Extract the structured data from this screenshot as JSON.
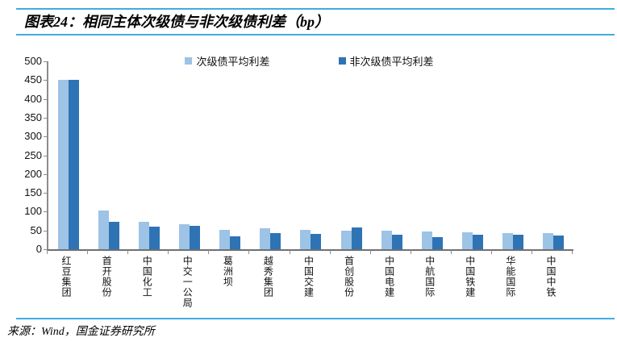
{
  "title": "图表24：相同主体次级债与非次级债利差（bp）",
  "source": "来源：Wind，国金证券研究所",
  "colors": {
    "rule_blue": "#41ACE1",
    "axis_gray": "#8C8C8C",
    "series1_light_blue": "#9DC3E6",
    "series2_dark_blue": "#2E74B5"
  },
  "chart_data": {
    "type": "bar",
    "title": "相同主体次级债与非次级债利差（bp）",
    "categories": [
      "红豆集团",
      "首开股份",
      "中国化工",
      "中交一公局",
      "葛洲坝",
      "越秀集团",
      "中国交建",
      "首创股份",
      "中国电建",
      "中航国际",
      "中国铁建",
      "华能国际",
      "中国中铁"
    ],
    "series": [
      {
        "name": "次级债平均利差",
        "color": "#9DC3E6",
        "values": [
          450,
          103,
          73,
          66,
          52,
          56,
          51,
          49,
          50,
          47,
          45,
          43,
          44
        ]
      },
      {
        "name": "非次级债平均利差",
        "color": "#2E74B5",
        "values": [
          450,
          74,
          60,
          62,
          35,
          44,
          40,
          57,
          39,
          33,
          38,
          38,
          37
        ]
      }
    ],
    "xlabel": "",
    "ylabel": "",
    "ylim": [
      0,
      500
    ],
    "ytick_step": 50,
    "ytick_labels": [
      "0",
      "50",
      "100",
      "150",
      "200",
      "250",
      "300",
      "350",
      "400",
      "450",
      "500"
    ],
    "grid": false,
    "legend_position": "top-center",
    "bar_orientation": "vertical"
  }
}
